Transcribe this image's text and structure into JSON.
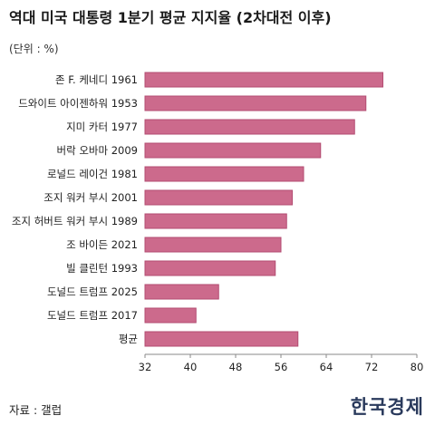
{
  "header": {
    "title": "역대 미국 대통령 1분기 평균 지지율 (2차대전 이후)",
    "unit": "(단위 : %)"
  },
  "footer": {
    "source": "자료 : 갤럽",
    "brand": "한국경제"
  },
  "colors": {
    "bar_fill": "#cc6a8c",
    "bar_stroke": "#b34c72",
    "axis": "#888888",
    "text": "#222222"
  },
  "chart_data": {
    "type": "bar",
    "orientation": "horizontal",
    "categories": [
      "존 F. 케네디 1961",
      "드와이트 아이젠하워 1953",
      "지미 카터 1977",
      "버락 오바마 2009",
      "로널드 레이건 1981",
      "조지 워커 부시 2001",
      "조지 허버트 워커 부시 1989",
      "조 바이든 2021",
      "빌 클린턴 1993",
      "도널드 트럼프 2025",
      "도널드 트럼프 2017",
      "평균"
    ],
    "values": [
      74,
      71,
      69,
      63,
      60,
      58,
      57,
      56,
      55,
      45,
      41,
      59
    ],
    "xlim": [
      32,
      80
    ],
    "xticks": [
      32,
      40,
      48,
      56,
      64,
      72,
      80
    ],
    "xlabel": "",
    "ylabel": "",
    "grid": false
  }
}
